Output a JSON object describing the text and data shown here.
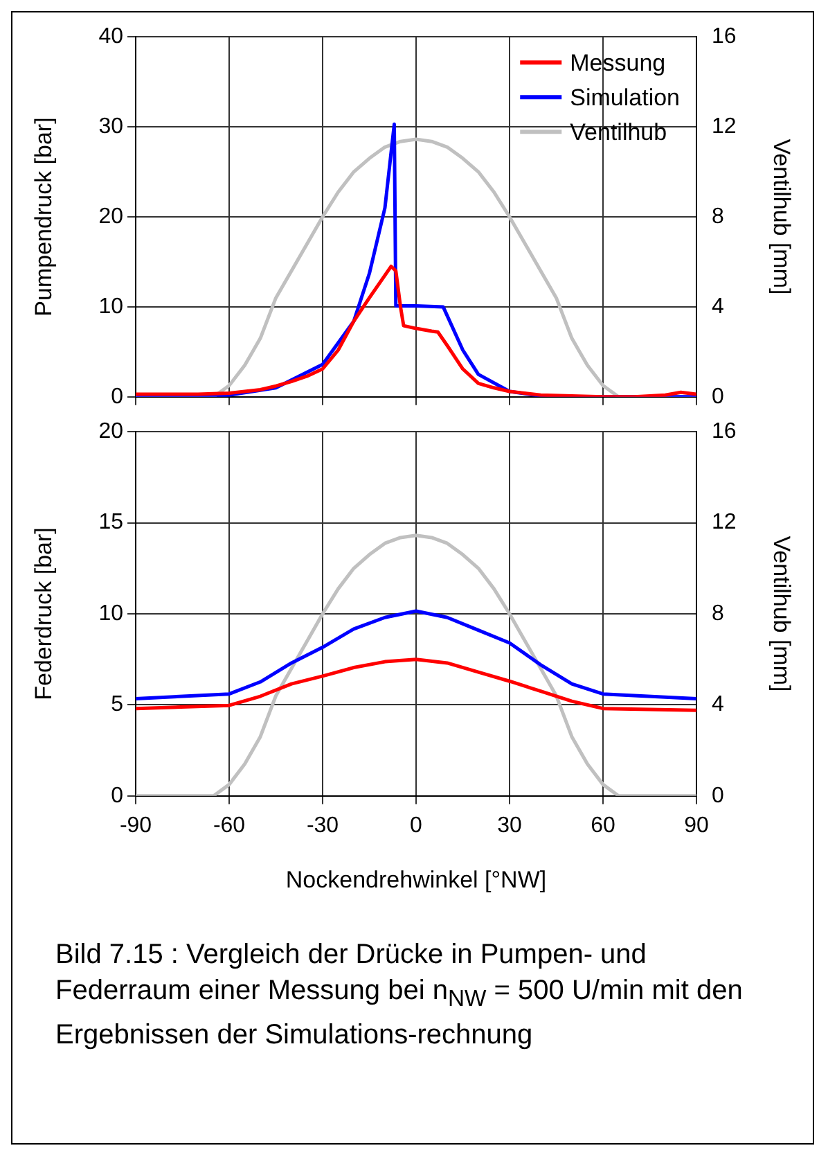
{
  "chart_data": [
    {
      "type": "line",
      "ylabel": "Pumpendruck [bar]",
      "y2label": "Ventilhub [mm]",
      "xlim": [
        -90,
        90
      ],
      "xticks": [
        -90,
        -60,
        -30,
        0,
        30,
        60,
        90
      ],
      "ylim": [
        0,
        40
      ],
      "yticks": [
        0,
        10,
        20,
        30,
        40
      ],
      "y2lim": [
        0,
        16
      ],
      "y2ticks": [
        0,
        4,
        8,
        12,
        16
      ],
      "grid": true,
      "legend": "top right",
      "tick_labels": "y",
      "marker": "none",
      "line_style": "solid",
      "series": [
        {
          "name": "Messung",
          "color": "#ff0000",
          "x": [
            -90,
            -80,
            -70,
            -60,
            -50,
            -45,
            -40,
            -35,
            -30,
            -25,
            -20,
            -15,
            -10,
            -8,
            -6.5,
            -5,
            -4,
            0,
            5,
            7,
            10,
            15,
            20,
            25,
            30,
            40,
            50,
            60,
            70,
            80,
            85,
            90
          ],
          "values": [
            0.3,
            0.3,
            0.3,
            0.4,
            0.8,
            1.2,
            1.7,
            2.3,
            3.1,
            5.2,
            8.4,
            11,
            13.5,
            14.5,
            14,
            10,
            7.9,
            7.6,
            7.3,
            7.2,
            5.7,
            3.1,
            1.5,
            1,
            0.6,
            0.2,
            0.1,
            0,
            0,
            0.2,
            0.5,
            0.3
          ]
        },
        {
          "name": "Simulation",
          "color": "#0000ff",
          "x": [
            -90,
            -70,
            -60,
            -45,
            -30,
            -20,
            -15,
            -10,
            -7,
            -6.5,
            0,
            8.7,
            15,
            20,
            30,
            40,
            45,
            90
          ],
          "values": [
            0,
            0,
            0.2,
            1,
            3.6,
            8.4,
            13.7,
            21,
            30.3,
            10.1,
            10.1,
            10,
            5.2,
            2.5,
            0.6,
            0.1,
            0,
            0
          ]
        },
        {
          "name": "Ventilhub",
          "color": "#c0c0c0",
          "axis": "y2",
          "x": [
            -90,
            -65,
            -60,
            -55,
            -50,
            -45,
            -40,
            -35,
            -30,
            -25,
            -20,
            -15,
            -10,
            -5,
            0,
            5,
            10,
            15,
            20,
            25,
            30,
            35,
            40,
            45,
            50,
            55,
            60,
            65,
            90
          ],
          "values": [
            0,
            0,
            0.5,
            1.4,
            2.6,
            4.4,
            5.6,
            6.8,
            8,
            9.1,
            10,
            10.6,
            11.1,
            11.35,
            11.45,
            11.35,
            11.1,
            10.6,
            10,
            9.1,
            8,
            6.8,
            5.6,
            4.4,
            2.6,
            1.4,
            0.5,
            0,
            0
          ]
        }
      ]
    },
    {
      "type": "line",
      "ylabel": "Federdruck [bar]",
      "y2label": "Ventilhub [mm]",
      "xlabel": "Nockendrehwinkel [°NW]",
      "xlim": [
        -90,
        90
      ],
      "xticks": [
        -90,
        -60,
        -30,
        0,
        30,
        60,
        90
      ],
      "ylim": [
        0,
        20
      ],
      "yticks": [
        0,
        5,
        10,
        15,
        20
      ],
      "y2lim": [
        0,
        16
      ],
      "y2ticks": [
        0,
        4,
        8,
        12,
        16
      ],
      "grid": true,
      "marker": "none",
      "line_style": "solid",
      "series": [
        {
          "color": "#ff0000",
          "x": [
            -90,
            -60,
            -50,
            -40,
            -30,
            -20,
            -10,
            0,
            10,
            20,
            30,
            40,
            50,
            60,
            90
          ],
          "values": [
            4.8,
            4.97,
            5.47,
            6.15,
            6.58,
            7.05,
            7.37,
            7.5,
            7.3,
            6.8,
            6.3,
            5.75,
            5.2,
            4.8,
            4.7
          ]
        },
        {
          "color": "#0000ff",
          "x": [
            -90,
            -60,
            -50,
            -40,
            -30,
            -20,
            -10,
            0,
            10,
            20,
            30,
            40,
            50,
            60,
            90
          ],
          "values": [
            5.34,
            5.6,
            6.26,
            7.3,
            8.16,
            9.17,
            9.8,
            10.15,
            9.8,
            9.1,
            8.4,
            7.2,
            6.15,
            5.6,
            5.34
          ]
        },
        {
          "color": "#c0c0c0",
          "axis": "y2",
          "x": [
            -90,
            -65,
            -60,
            -55,
            -50,
            -45,
            -40,
            -35,
            -30,
            -25,
            -20,
            -15,
            -10,
            -5,
            0,
            5,
            10,
            15,
            20,
            25,
            30,
            35,
            40,
            45,
            50,
            55,
            60,
            65,
            90
          ],
          "values": [
            0,
            0,
            0.5,
            1.4,
            2.6,
            4.4,
            5.6,
            6.8,
            8,
            9.1,
            10,
            10.6,
            11.1,
            11.35,
            11.45,
            11.35,
            11.1,
            10.6,
            10,
            9.1,
            8,
            6.8,
            5.6,
            4.4,
            2.6,
            1.4,
            0.5,
            0,
            0
          ]
        }
      ],
      "annotations": [
        "Bild 7.15 : Vergleich der Drücke in Pumpen- und Federraum einer Messung bei n$_{NW}$ = 500 U/min mit den Ergebnissen der Simulations-rechnung"
      ]
    }
  ]
}
